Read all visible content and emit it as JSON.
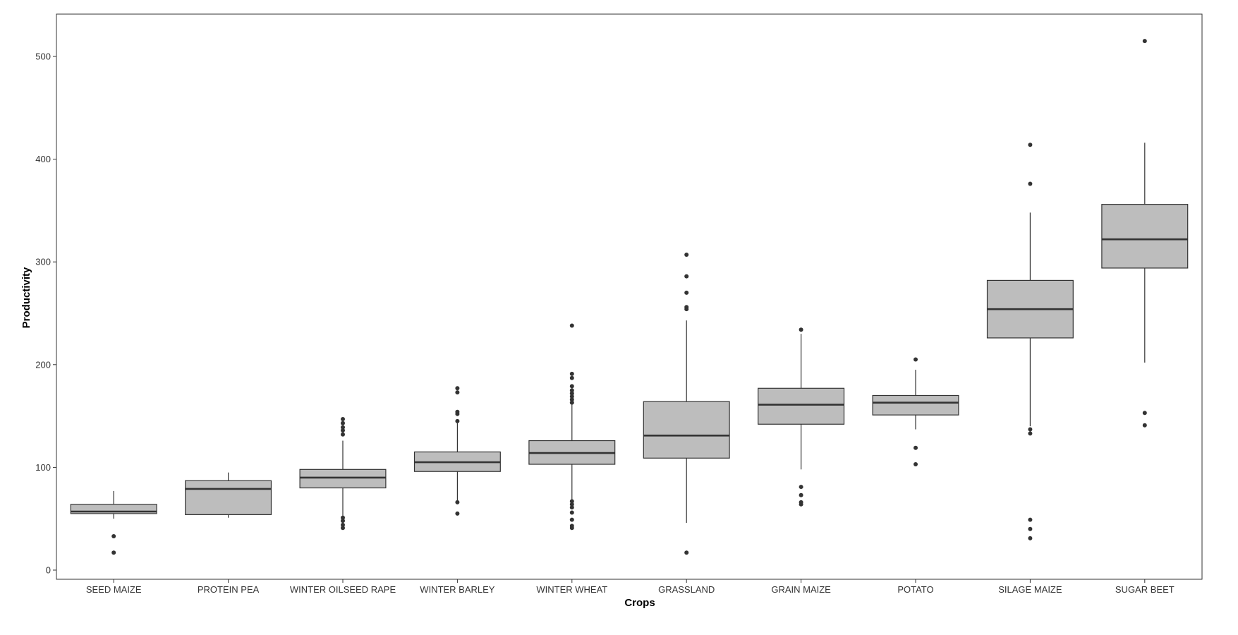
{
  "chart_data": {
    "type": "boxplot",
    "title": "",
    "xlabel": "Crops",
    "ylabel": "Productivity",
    "ylim": [
      -8,
      533
    ],
    "yticks": [
      0,
      100,
      200,
      300,
      400,
      500
    ],
    "grid": false,
    "colors": {
      "box_fill": "#bdbdbd",
      "box_stroke": "#333333",
      "outlier": "#333333",
      "frame": "#333333"
    },
    "categories": [
      "SEED MAIZE",
      "PROTEIN PEA",
      "WINTER OILSEED RAPE",
      "WINTER BARLEY",
      "WINTER WHEAT",
      "GRASSLAND",
      "GRAIN MAIZE",
      "POTATO",
      "SILAGE MAIZE",
      "SUGAR BEET"
    ],
    "boxes": [
      {
        "min": 50,
        "q1": 55,
        "median": 57,
        "q3": 64,
        "max": 77,
        "outliers": [
          17,
          33
        ]
      },
      {
        "min": 51,
        "q1": 54,
        "median": 79,
        "q3": 87,
        "max": 95,
        "outliers": []
      },
      {
        "min": 52,
        "q1": 80,
        "median": 90,
        "q3": 98,
        "max": 126,
        "outliers": [
          41,
          44,
          48,
          51,
          132,
          136,
          139,
          143,
          147
        ]
      },
      {
        "min": 68,
        "q1": 96,
        "median": 105,
        "q3": 115,
        "max": 143,
        "outliers": [
          55,
          66,
          145,
          152,
          154,
          173,
          177
        ]
      },
      {
        "min": 68,
        "q1": 103,
        "median": 114,
        "q3": 126,
        "max": 162,
        "outliers": [
          41,
          43,
          49,
          56,
          61,
          64,
          67,
          163,
          166,
          169,
          172,
          175,
          179,
          187,
          191,
          238
        ]
      },
      {
        "min": 46,
        "q1": 109,
        "median": 131,
        "q3": 164,
        "max": 243,
        "outliers": [
          17,
          254,
          256,
          270,
          286,
          307
        ]
      },
      {
        "min": 98,
        "q1": 142,
        "median": 161,
        "q3": 177,
        "max": 230,
        "outliers": [
          64,
          66,
          73,
          81,
          234
        ]
      },
      {
        "min": 137,
        "q1": 151,
        "median": 163,
        "q3": 170,
        "max": 195,
        "outliers": [
          103,
          119,
          205
        ]
      },
      {
        "min": 140,
        "q1": 226,
        "median": 254,
        "q3": 282,
        "max": 348,
        "outliers": [
          31,
          40,
          49,
          133,
          137,
          376,
          414
        ]
      },
      {
        "min": 202,
        "q1": 294,
        "median": 322,
        "q3": 356,
        "max": 416,
        "outliers": [
          141,
          153,
          515
        ]
      }
    ]
  }
}
